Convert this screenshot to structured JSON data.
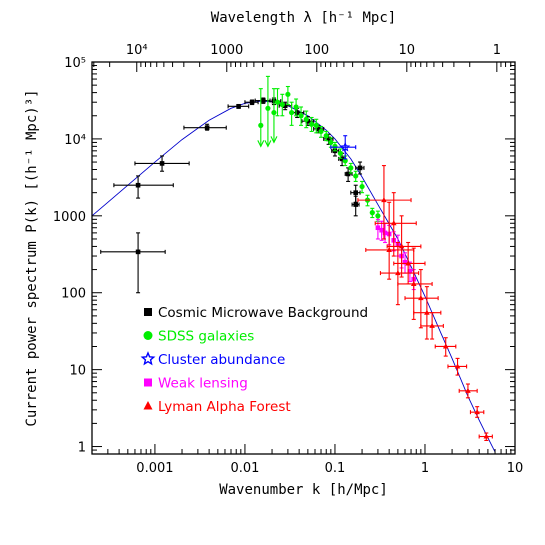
{
  "chart_data": {
    "type": "scatter",
    "xlabel": "Wavenumber k [h/Mpc]",
    "ylabel": "Current power spectrum P(k) [(h⁻¹ Mpc)³]",
    "x2label": "Wavelength λ [h⁻¹ Mpc]",
    "x_scale": "log",
    "y_scale": "log",
    "xlim": [
      0.0002,
      10
    ],
    "ylim": [
      0.8,
      100000
    ],
    "x_ticks": [
      {
        "value": 0.001,
        "label": "0.001"
      },
      {
        "value": 0.01,
        "label": "0.01"
      },
      {
        "value": 0.1,
        "label": "0.1"
      },
      {
        "value": 1,
        "label": "1"
      },
      {
        "value": 10,
        "label": "10"
      }
    ],
    "y_ticks": [
      {
        "value": 1,
        "label": "1"
      },
      {
        "value": 10,
        "label": "10"
      },
      {
        "value": 100,
        "label": "100"
      },
      {
        "value": 1000,
        "label": "1000"
      },
      {
        "value": 10000,
        "label": "10⁴"
      },
      {
        "value": 100000,
        "label": "10⁵"
      }
    ],
    "top_ticks": [
      {
        "value": 10000,
        "label": "10⁴"
      },
      {
        "value": 1000,
        "label": "1000"
      },
      {
        "value": 100,
        "label": "100"
      },
      {
        "value": 10,
        "label": "10"
      },
      {
        "value": 1,
        "label": "1"
      }
    ],
    "model_curve": {
      "color": "#0000cc",
      "points": [
        [
          0.0002,
          1000
        ],
        [
          0.0003,
          1500
        ],
        [
          0.0005,
          2500
        ],
        [
          0.001,
          5000
        ],
        [
          0.002,
          9800
        ],
        [
          0.004,
          17500
        ],
        [
          0.007,
          25000
        ],
        [
          0.01,
          29000
        ],
        [
          0.015,
          31000
        ],
        [
          0.02,
          30500
        ],
        [
          0.03,
          27000
        ],
        [
          0.05,
          20000
        ],
        [
          0.08,
          13000
        ],
        [
          0.1,
          10000
        ],
        [
          0.15,
          5500
        ],
        [
          0.2,
          3200
        ],
        [
          0.3,
          1400
        ],
        [
          0.5,
          500
        ],
        [
          0.7,
          220
        ],
        [
          1,
          90
        ],
        [
          1.5,
          30
        ],
        [
          2,
          14
        ],
        [
          3,
          4.5
        ],
        [
          4,
          2.2
        ],
        [
          5,
          1.3
        ],
        [
          6,
          0.85
        ]
      ]
    },
    "series": [
      {
        "name": "Cosmic Microwave Background",
        "color": "#000000",
        "marker": "square",
        "points": [
          {
            "x": 0.00065,
            "y": 340,
            "xerr": [
              0.00025,
              0.0013
            ],
            "yerr": [
              100,
              600
            ]
          },
          {
            "x": 0.00065,
            "y": 2500,
            "xerr": [
              0.00035,
              0.0016
            ],
            "yerr": [
              1700,
              3300
            ]
          },
          {
            "x": 0.0012,
            "y": 4800,
            "xerr": [
              0.0006,
              0.0024
            ],
            "yerr": [
              3800,
              6000
            ]
          },
          {
            "x": 0.0038,
            "y": 14000,
            "xerr": [
              0.0021,
              0.0062
            ],
            "yerr": [
              13000,
              15500
            ]
          },
          {
            "x": 0.0085,
            "y": 26500,
            "xerr": [
              0.0065,
              0.011
            ],
            "yerr": [
              25000,
              28000
            ]
          },
          {
            "x": 0.012,
            "y": 30000,
            "xerr": [
              0.01,
              0.014
            ],
            "yerr": [
              28000,
              32000
            ]
          },
          {
            "x": 0.016,
            "y": 31500,
            "xerr": [
              0.013,
              0.019
            ],
            "yerr": [
              29000,
              34000
            ]
          },
          {
            "x": 0.021,
            "y": 31000,
            "xerr": [
              0.018,
              0.025
            ],
            "yerr": [
              28000,
              34000
            ]
          },
          {
            "x": 0.028,
            "y": 27000,
            "xerr": [
              0.024,
              0.033
            ],
            "yerr": [
              24000,
              30000
            ]
          },
          {
            "x": 0.038,
            "y": 22000,
            "xerr": [
              0.032,
              0.045
            ],
            "yerr": [
              19000,
              25000
            ]
          },
          {
            "x": 0.05,
            "y": 17000,
            "xerr": [
              0.043,
              0.058
            ],
            "yerr": [
              15000,
              19500
            ]
          },
          {
            "x": 0.065,
            "y": 13500,
            "xerr": [
              0.058,
              0.075
            ],
            "yerr": [
              12000,
              15000
            ]
          },
          {
            "x": 0.085,
            "y": 10000,
            "xerr": [
              0.075,
              0.095
            ],
            "yerr": [
              8500,
              11500
            ]
          },
          {
            "x": 0.1,
            "y": 7000,
            "xerr": [
              0.092,
              0.11
            ],
            "yerr": [
              6000,
              8000
            ]
          },
          {
            "x": 0.12,
            "y": 5500,
            "xerr": [
              0.11,
              0.13
            ],
            "yerr": [
              4500,
              6500
            ]
          },
          {
            "x": 0.14,
            "y": 3500,
            "xerr": [
              0.13,
              0.155
            ],
            "yerr": [
              2800,
              4200
            ]
          },
          {
            "x": 0.17,
            "y": 2000,
            "xerr": [
              0.15,
              0.19
            ],
            "yerr": [
              1500,
              2500
            ]
          },
          {
            "x": 0.19,
            "y": 4200,
            "xerr": [
              0.17,
              0.21
            ],
            "yerr": [
              3500,
              5000
            ]
          },
          {
            "x": 0.17,
            "y": 1400,
            "xerr": [
              0.155,
              0.185
            ],
            "yerr": [
              1000,
              1800
            ]
          }
        ]
      },
      {
        "name": "SDSS galaxies",
        "color": "#00ee00",
        "marker": "circle",
        "points": [
          {
            "x": 0.015,
            "y": 15000,
            "yerr": [
              8000,
              45000
            ],
            "upper_limit": true
          },
          {
            "x": 0.018,
            "y": 25000,
            "yerr": [
              8000,
              65000
            ],
            "upper_limit": true
          },
          {
            "x": 0.021,
            "y": 22000,
            "yerr": [
              9000,
              45000
            ],
            "upper_limit": true
          },
          {
            "x": 0.023,
            "y": 30000,
            "yerr": [
              20000,
              45000
            ]
          },
          {
            "x": 0.026,
            "y": 28000,
            "yerr": [
              20000,
              38000
            ]
          },
          {
            "x": 0.03,
            "y": 38000,
            "yerr": [
              28000,
              48000
            ]
          },
          {
            "x": 0.033,
            "y": 22000,
            "yerr": [
              15000,
              30000
            ]
          },
          {
            "x": 0.037,
            "y": 26000,
            "yerr": [
              20000,
              33000
            ]
          },
          {
            "x": 0.042,
            "y": 20000,
            "yerr": [
              15000,
              26000
            ]
          },
          {
            "x": 0.048,
            "y": 18000,
            "yerr": [
              14000,
              23000
            ]
          },
          {
            "x": 0.055,
            "y": 15500,
            "yerr": [
              12500,
              19000
            ]
          },
          {
            "x": 0.062,
            "y": 15000,
            "yerr": [
              12000,
              18000
            ]
          },
          {
            "x": 0.07,
            "y": 12500,
            "yerr": [
              10500,
              14500
            ]
          },
          {
            "x": 0.08,
            "y": 11000,
            "yerr": [
              9500,
              12500
            ]
          },
          {
            "x": 0.09,
            "y": 9000,
            "yerr": [
              7800,
              10300
            ]
          },
          {
            "x": 0.1,
            "y": 8000,
            "yerr": [
              7000,
              9000
            ]
          },
          {
            "x": 0.115,
            "y": 6500,
            "yerr": [
              5600,
              7400
            ]
          },
          {
            "x": 0.13,
            "y": 5200,
            "yerr": [
              4500,
              6000
            ]
          },
          {
            "x": 0.15,
            "y": 4200,
            "yerr": [
              3600,
              4800
            ]
          },
          {
            "x": 0.17,
            "y": 3300,
            "yerr": [
              2800,
              3800
            ]
          },
          {
            "x": 0.2,
            "y": 2400,
            "yerr": [
              2000,
              2800
            ]
          },
          {
            "x": 0.23,
            "y": 1600,
            "yerr": [
              1350,
              1850
            ]
          },
          {
            "x": 0.26,
            "y": 1100,
            "yerr": [
              950,
              1250
            ]
          },
          {
            "x": 0.3,
            "y": 1000,
            "yerr": [
              850,
              1150
            ]
          }
        ]
      },
      {
        "name": "Cluster abundance",
        "color": "#0000ff",
        "marker": "star",
        "points": [
          {
            "x": 0.13,
            "y": 7800,
            "xerr": [
              0.09,
              0.17
            ],
            "yerr": [
              5500,
              11000
            ]
          }
        ]
      },
      {
        "name": "Weak lensing",
        "color": "#ff00ff",
        "marker": "square",
        "points": [
          {
            "x": 0.3,
            "y": 700,
            "yerr": [
              500,
              900
            ]
          },
          {
            "x": 0.33,
            "y": 650,
            "yerr": [
              480,
              850
            ]
          },
          {
            "x": 0.36,
            "y": 600,
            "yerr": [
              450,
              800
            ]
          },
          {
            "x": 0.4,
            "y": 580,
            "yerr": [
              420,
              750
            ]
          },
          {
            "x": 0.45,
            "y": 480,
            "yerr": [
              350,
              620
            ]
          },
          {
            "x": 0.5,
            "y": 420,
            "yerr": [
              300,
              560
            ]
          },
          {
            "x": 0.55,
            "y": 300,
            "yerr": [
              210,
              400
            ]
          },
          {
            "x": 0.6,
            "y": 250,
            "yerr": [
              180,
              330
            ]
          },
          {
            "x": 0.68,
            "y": 190,
            "yerr": [
              140,
              250
            ]
          },
          {
            "x": 0.75,
            "y": 150,
            "yerr": [
              110,
              200
            ]
          }
        ]
      },
      {
        "name": "Lyman Alpha Forest",
        "color": "#ff0000",
        "marker": "triangle",
        "points": [
          {
            "x": 0.35,
            "y": 1600,
            "xerr": [
              0.18,
              0.7
            ],
            "yerr": [
              500,
              4500
            ]
          },
          {
            "x": 0.4,
            "y": 360,
            "xerr": [
              0.22,
              0.75
            ],
            "yerr": [
              150,
              1500
            ]
          },
          {
            "x": 0.45,
            "y": 800,
            "xerr": [
              0.28,
              0.8
            ],
            "yerr": [
              300,
              2000
            ]
          },
          {
            "x": 0.5,
            "y": 180,
            "xerr": [
              0.32,
              0.85
            ],
            "yerr": [
              70,
              450
            ]
          },
          {
            "x": 0.55,
            "y": 400,
            "xerr": [
              0.38,
              0.9
            ],
            "yerr": [
              160,
              1000
            ]
          },
          {
            "x": 0.65,
            "y": 240,
            "xerr": [
              0.45,
              1.0
            ],
            "yerr": [
              130,
              450
            ]
          },
          {
            "x": 0.75,
            "y": 130,
            "xerr": [
              0.5,
              1.2
            ],
            "yerr": [
              45,
              380
            ]
          },
          {
            "x": 0.9,
            "y": 85,
            "xerr": [
              0.6,
              1.4
            ],
            "yerr": [
              35,
              200
            ]
          },
          {
            "x": 1.05,
            "y": 55,
            "xerr": [
              0.75,
              1.5
            ],
            "yerr": [
              25,
              120
            ]
          },
          {
            "x": 1.2,
            "y": 37,
            "xerr": [
              0.9,
              1.6
            ],
            "yerr": [
              25,
              55
            ]
          },
          {
            "x": 1.7,
            "y": 20,
            "xerr": [
              1.3,
              2.2
            ],
            "yerr": [
              15,
              26
            ]
          },
          {
            "x": 2.3,
            "y": 11,
            "xerr": [
              1.8,
              2.9
            ],
            "yerr": [
              8.5,
              14
            ]
          },
          {
            "x": 3.0,
            "y": 5.3,
            "xerr": [
              2.4,
              3.8
            ],
            "yerr": [
              4.3,
              6.5
            ]
          },
          {
            "x": 3.8,
            "y": 2.8,
            "xerr": [
              3.2,
              4.5
            ],
            "yerr": [
              2.4,
              3.3
            ]
          },
          {
            "x": 4.8,
            "y": 1.35,
            "xerr": [
              4.0,
              5.6
            ],
            "yerr": [
              1.2,
              1.5
            ]
          }
        ]
      }
    ]
  }
}
